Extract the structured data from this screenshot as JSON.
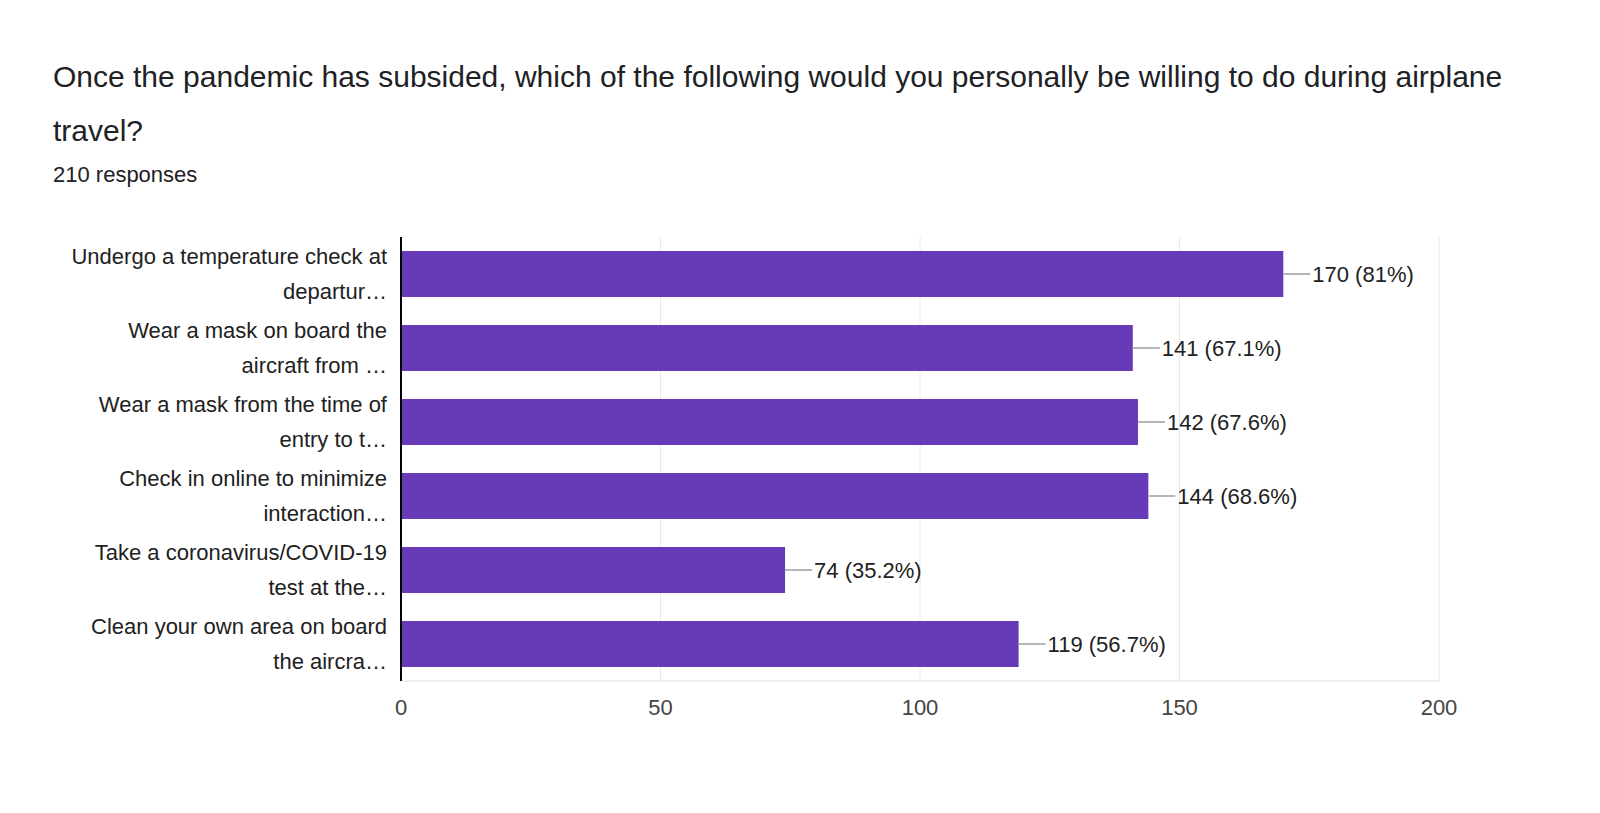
{
  "chart_data": {
    "type": "bar",
    "title": "Once the pandemic has subsided, which of the following would you personally be willing to do during airplane travel?",
    "subtitle": "210 responses",
    "orientation": "horizontal",
    "categories": [
      "Undergo a temperature check at departur…",
      "Wear a mask on board the aircraft from …",
      "Wear a mask from the time of entry to t…",
      "Check in online to minimize interaction…",
      "Take a coronavirus/COVID-19 test at the…",
      "Clean your own area on board the aircra…"
    ],
    "values": [
      170,
      141,
      142,
      144,
      74,
      119
    ],
    "value_labels": [
      "170 (81%)",
      "141 (67.1%)",
      "142 (67.6%)",
      "144 (68.6%)",
      "74 (35.2%)",
      "119 (56.7%)"
    ],
    "data_labels": true,
    "color": "#673ab7",
    "xlim": [
      0,
      200
    ],
    "xticks": [
      0,
      50,
      100,
      150,
      200
    ],
    "grid": true
  }
}
